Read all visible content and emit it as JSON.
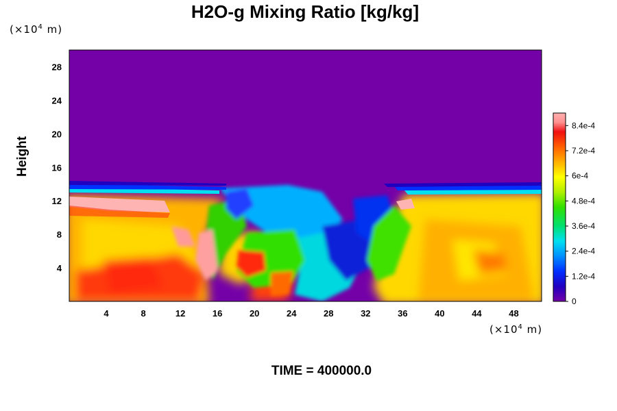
{
  "chart_data": {
    "type": "heatmap",
    "title": "H2O-g Mixing Ratio [kg/kg]",
    "xlabel": "",
    "ylabel": "Height",
    "x_unit_prefix": "(×10",
    "x_unit_exp": "4",
    "x_unit_suffix": " m)",
    "y_unit_prefix": "(×10",
    "y_unit_exp": "4",
    "y_unit_suffix": " m)",
    "xlim": [
      0,
      51
    ],
    "ylim": [
      0,
      30
    ],
    "x_ticks": [
      4,
      8,
      12,
      16,
      20,
      24,
      28,
      32,
      36,
      40,
      44,
      48
    ],
    "y_ticks": [
      4,
      8,
      12,
      16,
      20,
      24,
      28
    ],
    "colorbar": {
      "min": 0,
      "max": 0.0009,
      "tick_values": [
        0,
        0.00012,
        0.00024,
        0.00036,
        0.00048,
        0.0006,
        0.00072,
        0.00084
      ],
      "tick_labels": [
        "0",
        "1.2e-4",
        "2.4e-4",
        "3.6e-4",
        "4.8e-4",
        "6e-4",
        "7.2e-4",
        "8.4e-4"
      ]
    },
    "background_color": "#7400a8",
    "annotation": "TIME = 400000.0"
  }
}
